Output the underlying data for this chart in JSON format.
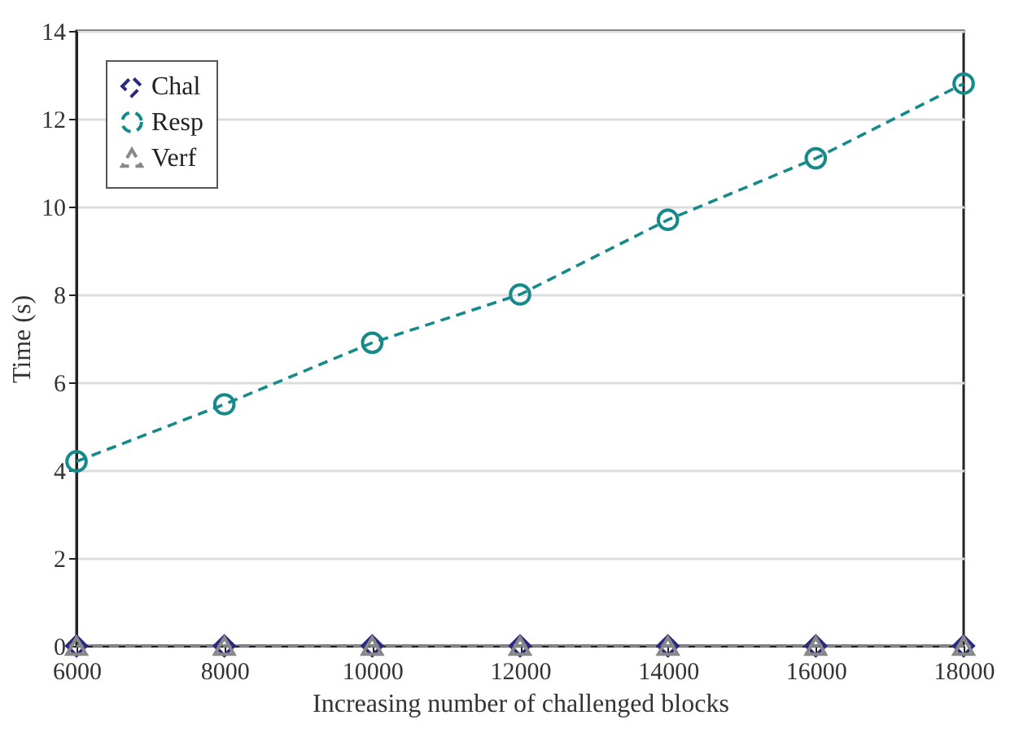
{
  "chart_data": {
    "type": "line",
    "xlabel": "Increasing number of challenged blocks",
    "ylabel": "Time (s)",
    "x": [
      6000,
      8000,
      10000,
      12000,
      14000,
      16000,
      18000
    ],
    "series": [
      {
        "name": "Chal",
        "color": "#2b2a80",
        "marker": "diamond",
        "values": [
          0,
          0,
          0,
          0,
          0,
          0,
          0
        ]
      },
      {
        "name": "Resp",
        "color": "#168a8a",
        "marker": "circle",
        "values": [
          4.2,
          5.5,
          6.9,
          8.0,
          9.7,
          11.1,
          12.8
        ]
      },
      {
        "name": "Verf",
        "color": "#888888",
        "marker": "triangle",
        "values": [
          0,
          0,
          0,
          0,
          0,
          0,
          0
        ]
      }
    ],
    "xlim": [
      6000,
      18000
    ],
    "xticks": [
      6000,
      8000,
      10000,
      12000,
      14000,
      16000,
      18000
    ],
    "ylim": [
      0,
      14
    ],
    "yticks": [
      0,
      2,
      4,
      6,
      8,
      10,
      12,
      14
    ],
    "grid": "y",
    "legend": "top left",
    "line_style": "dashed"
  }
}
